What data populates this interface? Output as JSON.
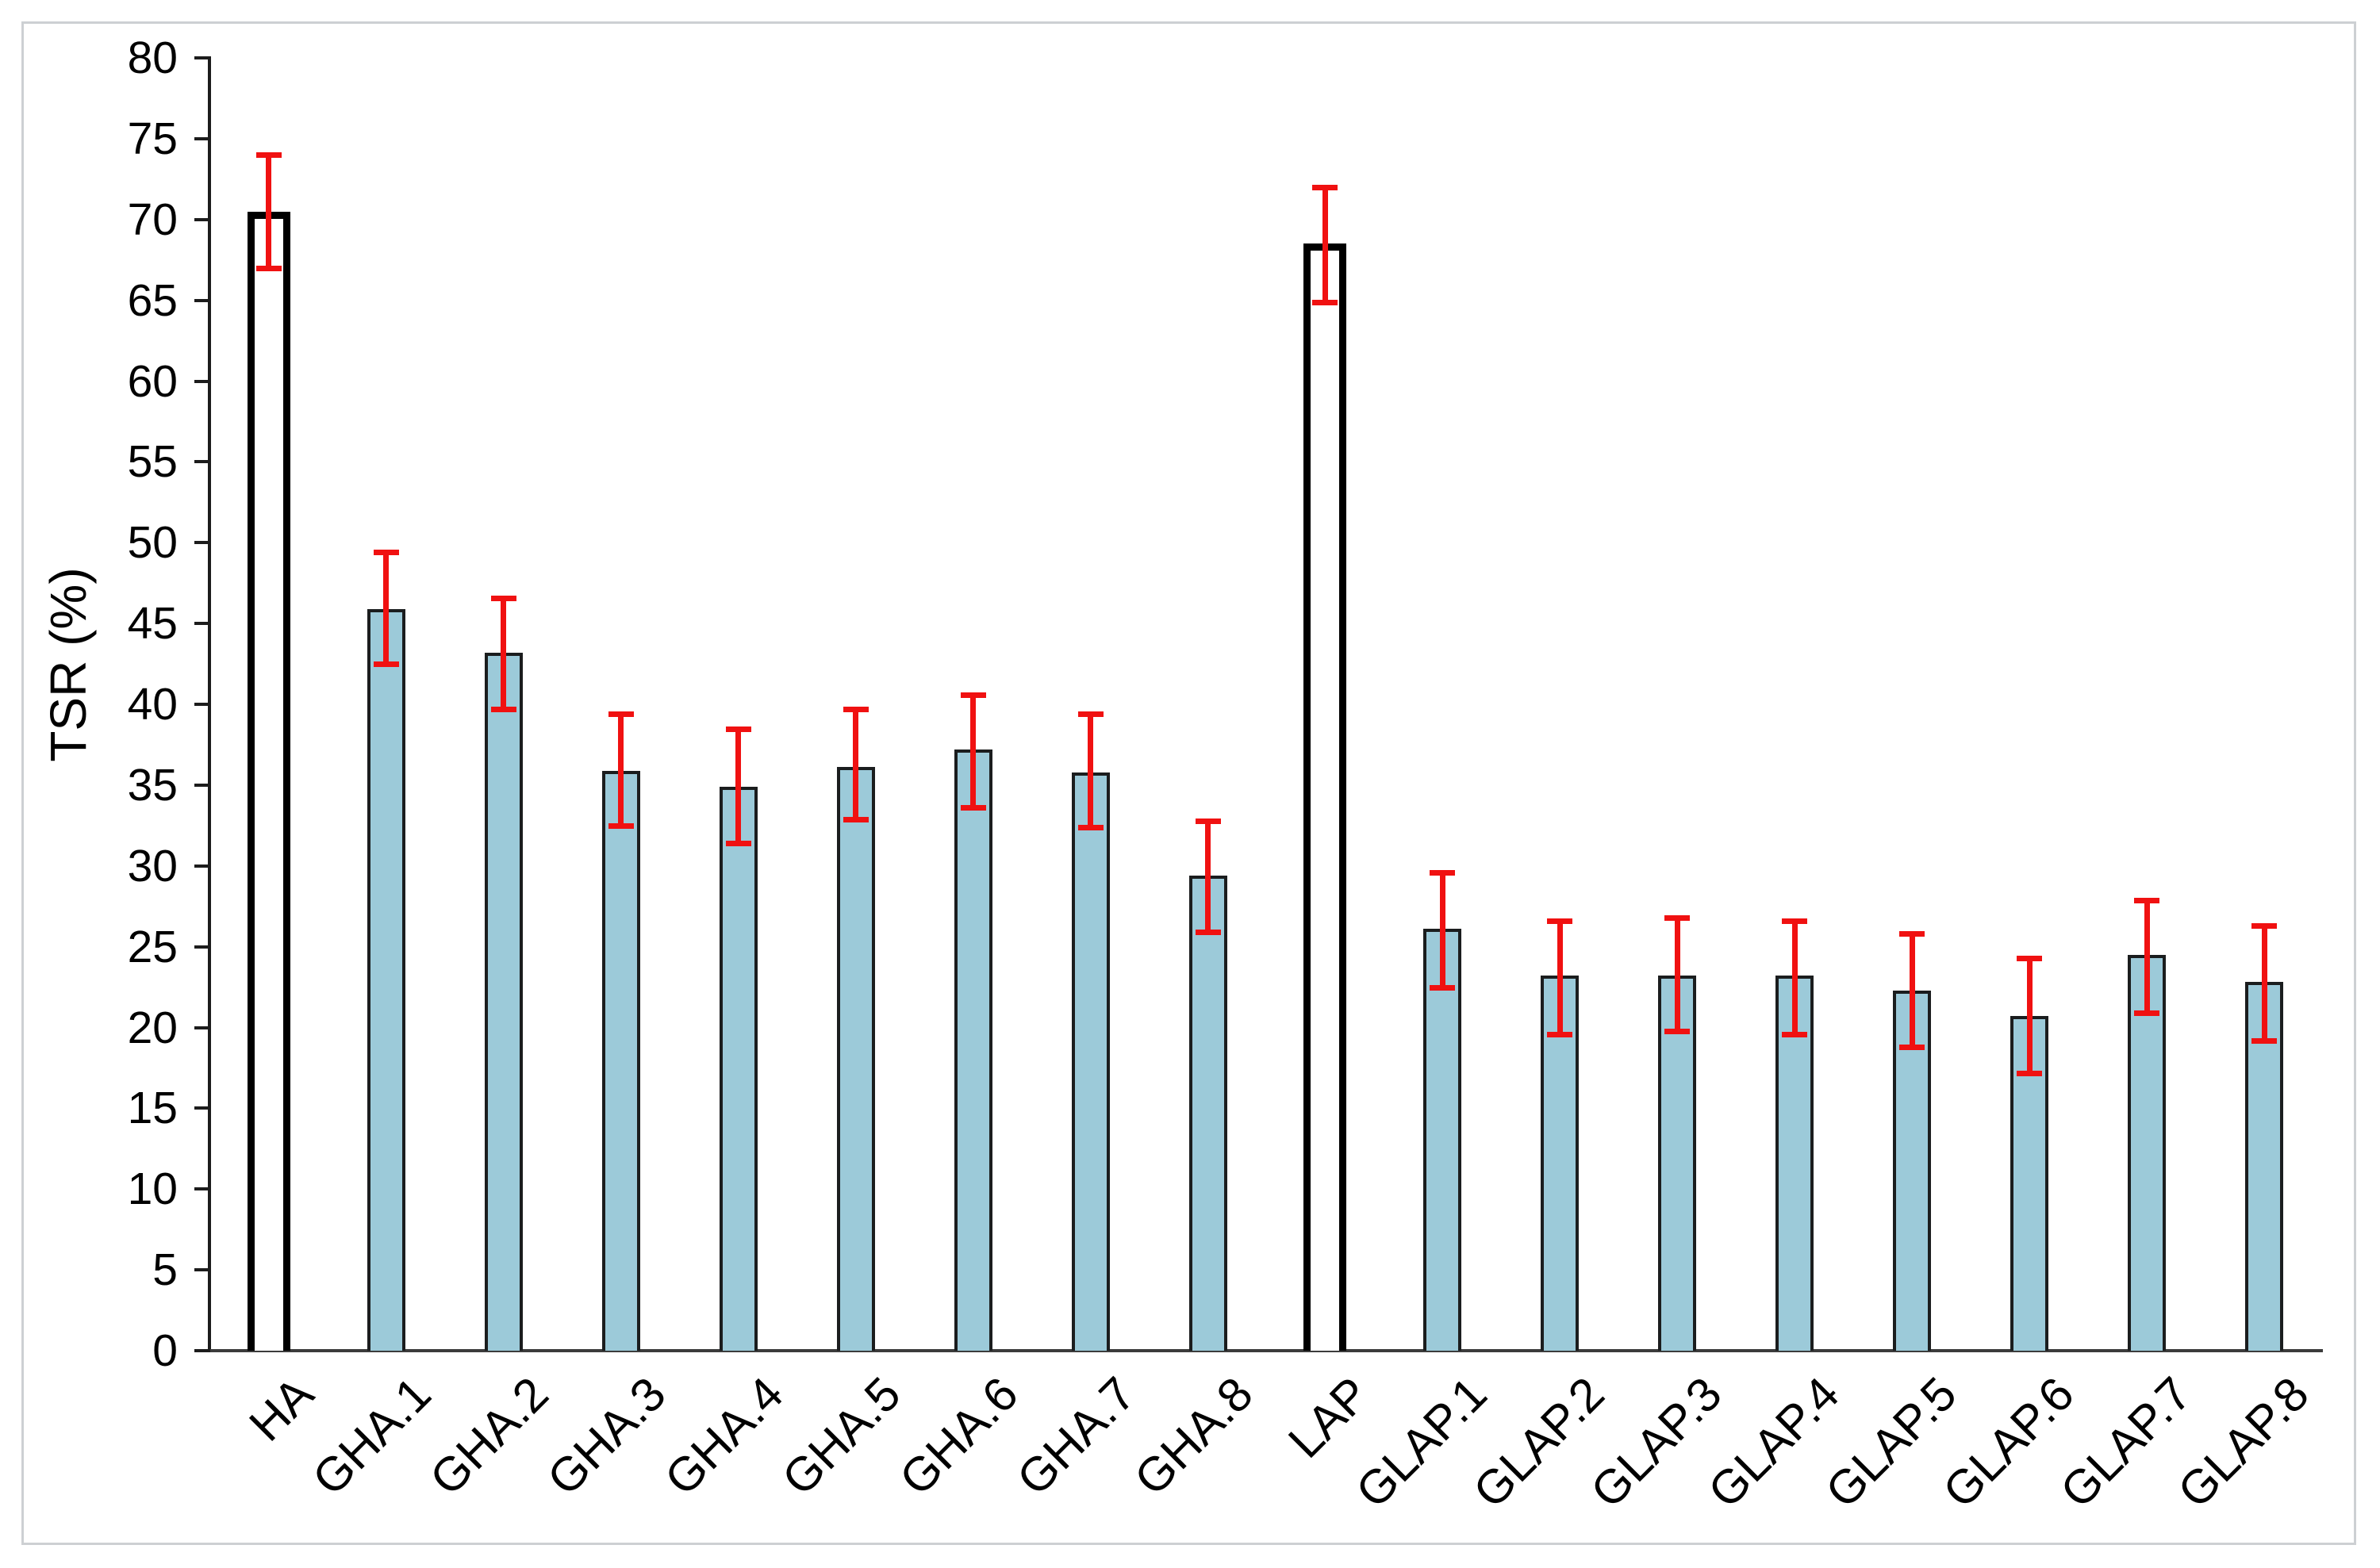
{
  "frame": {
    "border_color": "#cdd0d3"
  },
  "chart_data": {
    "type": "bar",
    "title": "",
    "xlabel": "",
    "ylabel": "TSR (%)",
    "ylim": [
      0,
      80
    ],
    "yticks": [
      0,
      5,
      10,
      15,
      20,
      25,
      30,
      35,
      40,
      45,
      50,
      55,
      60,
      65,
      70,
      75,
      80
    ],
    "grid": false,
    "legend": "none",
    "categories": [
      "HA",
      "GHA.1",
      "GHA.2",
      "GHA.3",
      "GHA.4",
      "GHA.5",
      "GHA.6",
      "GHA.7",
      "GHA.8",
      "LAP",
      "GLAP.1",
      "GLAP.2",
      "GLAP.3",
      "GLAP.4",
      "GLAP.5",
      "GLAP.6",
      "GLAP.7",
      "GLAP.8"
    ],
    "values": [
      70.5,
      45.9,
      43.2,
      35.9,
      34.9,
      36.1,
      37.2,
      35.8,
      29.4,
      68.5,
      26.1,
      23.2,
      23.2,
      23.2,
      22.3,
      20.7,
      24.5,
      22.8
    ],
    "error_low": [
      67.0,
      42.5,
      39.7,
      32.5,
      31.4,
      32.9,
      33.6,
      32.4,
      25.9,
      64.9,
      22.5,
      19.6,
      19.8,
      19.6,
      18.8,
      17.2,
      20.9,
      19.2
    ],
    "error_high": [
      74.0,
      49.4,
      46.6,
      39.4,
      38.5,
      39.7,
      40.6,
      39.4,
      32.8,
      72.0,
      29.6,
      26.6,
      26.8,
      26.6,
      25.8,
      24.3,
      27.9,
      26.3
    ],
    "outline_categories": [
      "HA",
      "LAP"
    ],
    "colors": {
      "bar_fill": "#9ccad9",
      "bar_border": "#1b1d1e",
      "outline_bar_fill": "#ffffff",
      "outline_bar_border": "#000000",
      "error_bar": "#f01111",
      "y_axis": "#1c1c1c",
      "x_axis": "#3c3c3c",
      "tick_label": "#000000"
    }
  }
}
